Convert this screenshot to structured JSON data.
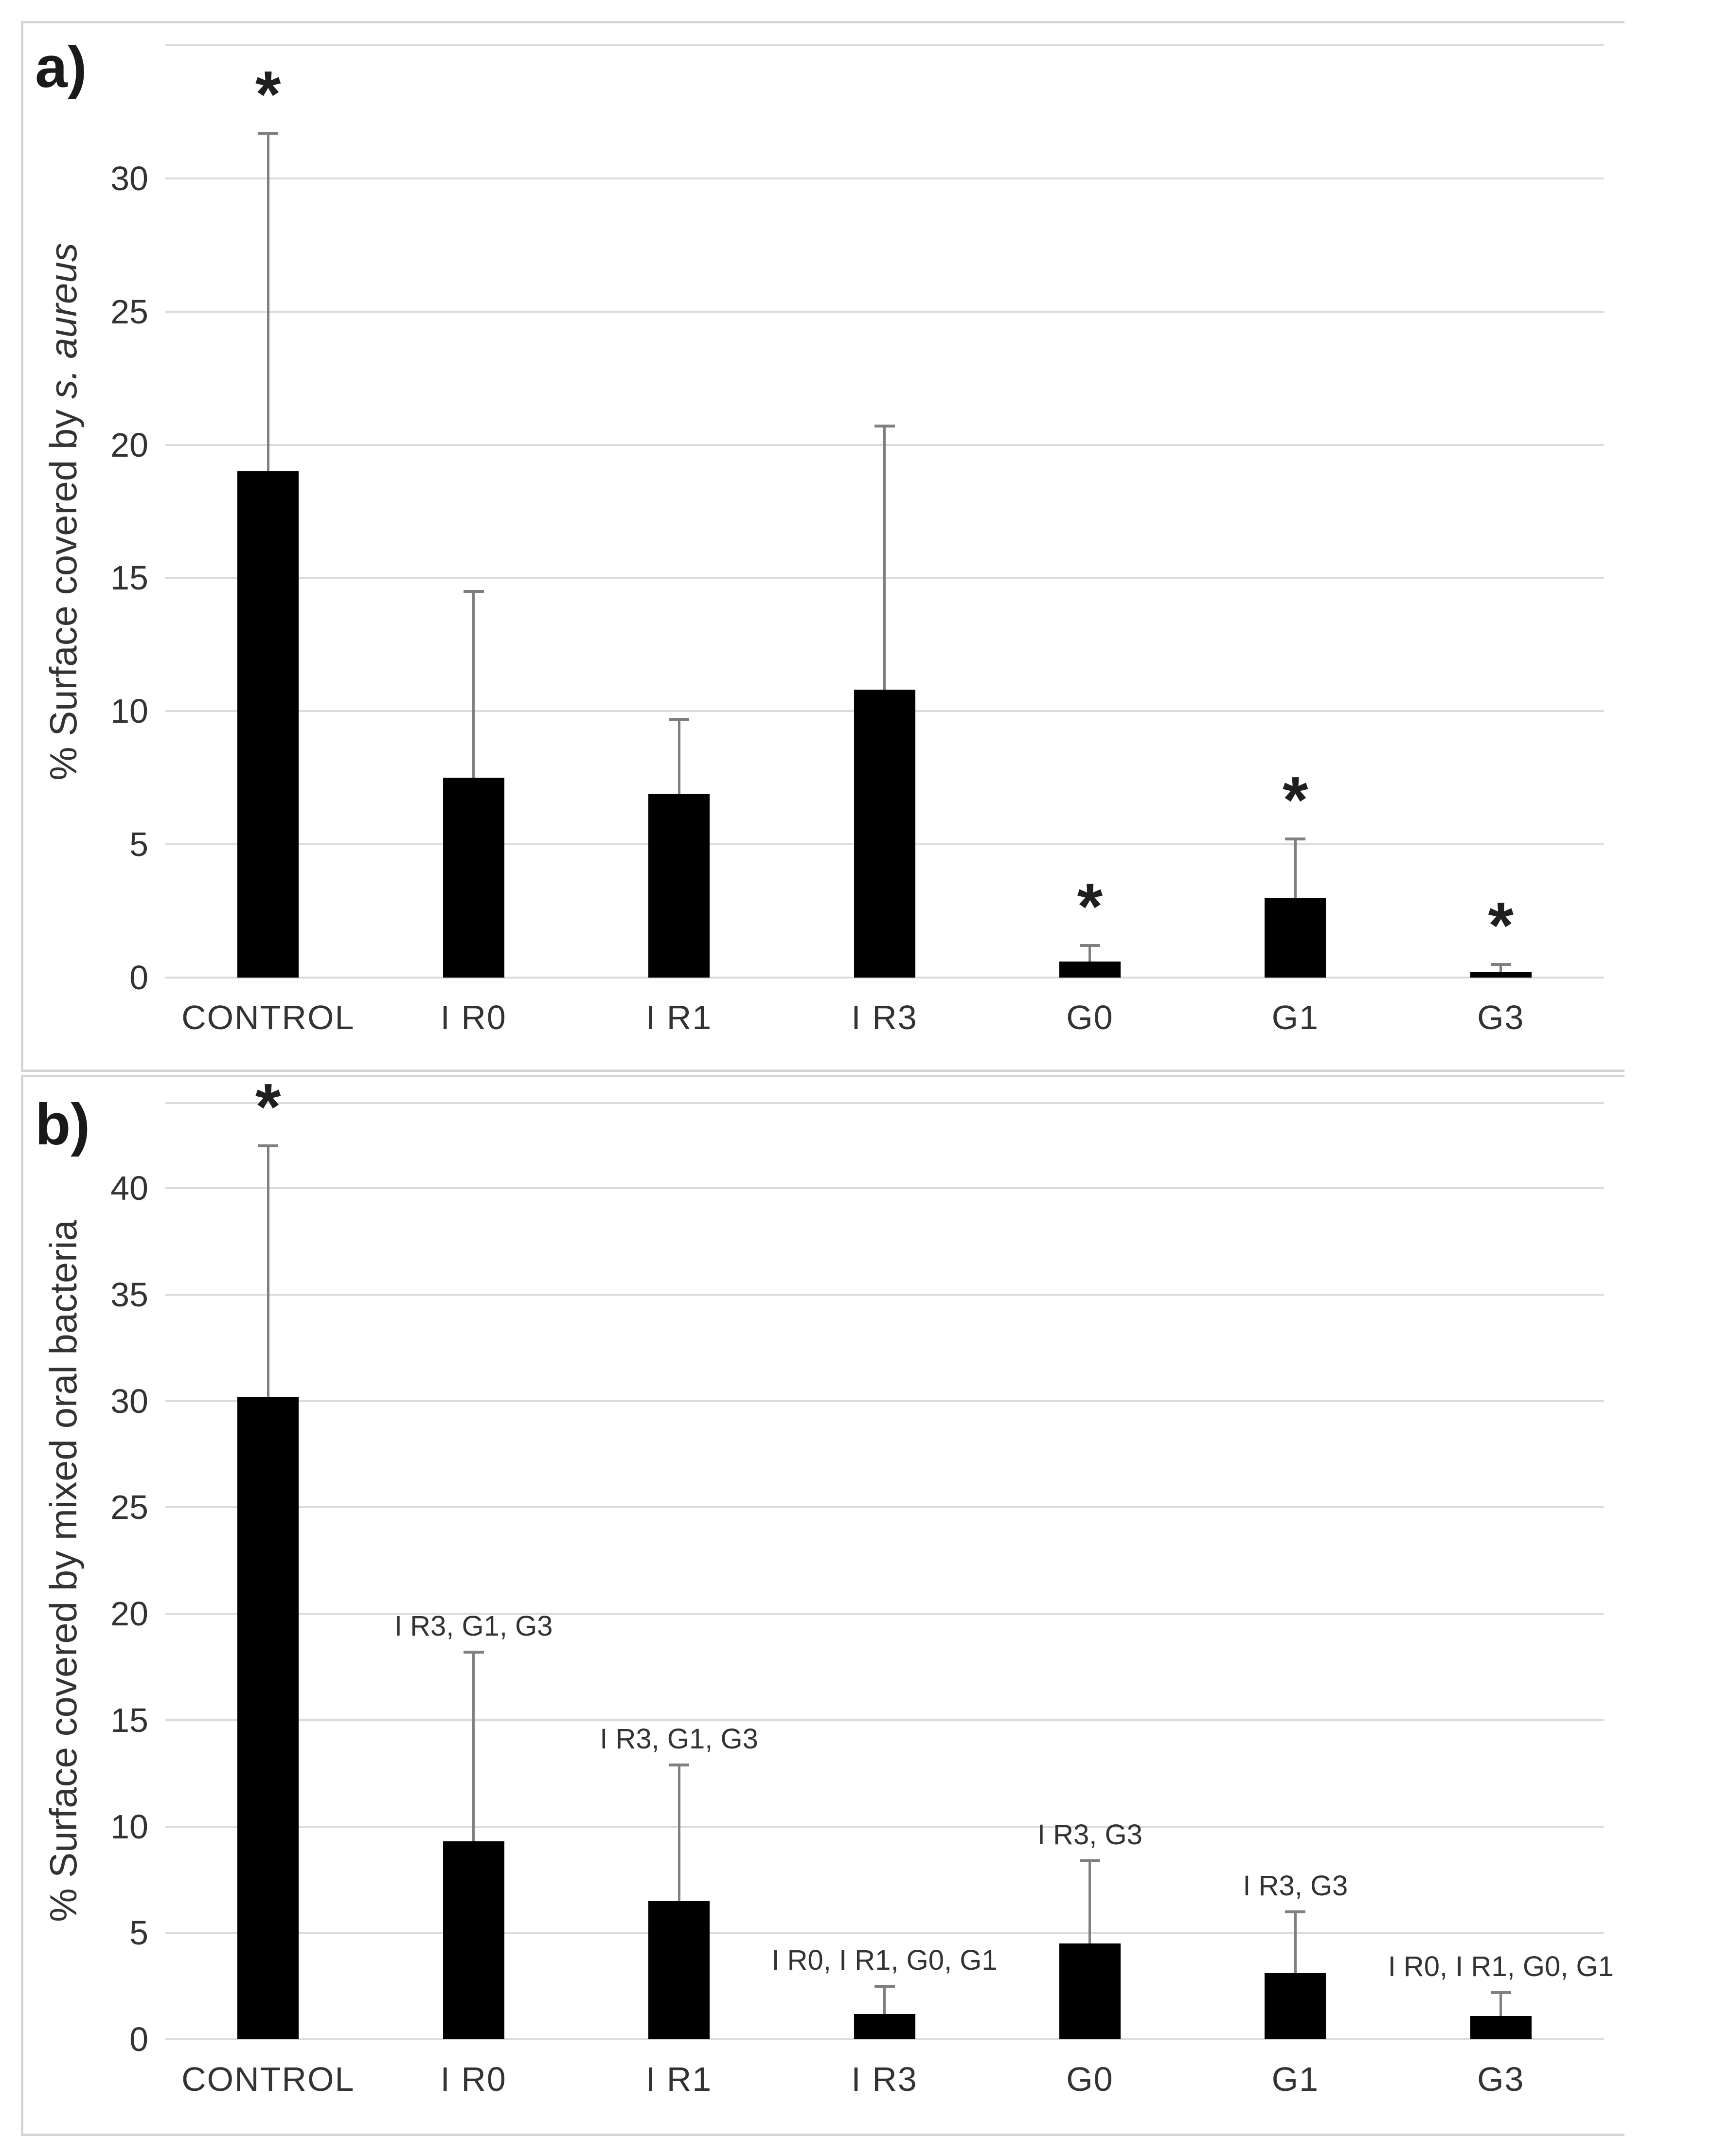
{
  "chart_data": [
    {
      "type": "bar",
      "panel_label": "a)",
      "ylabel_prefix": "% Surface covered by ",
      "ylabel_italic": "s. aureus",
      "categories": [
        "CONTROL",
        "I R0",
        "I R1",
        "I R3",
        "G0",
        "G1",
        "G3"
      ],
      "values": [
        19.0,
        7.5,
        6.9,
        10.8,
        0.6,
        3.0,
        0.2
      ],
      "error_plus": [
        12.7,
        7.0,
        2.8,
        9.9,
        0.6,
        2.2,
        0.3
      ],
      "significance": [
        "*",
        "",
        "",
        "",
        "*",
        "*",
        "*"
      ],
      "annotations": [
        "",
        "",
        "",
        "",
        "",
        "",
        ""
      ],
      "yticks": [
        0,
        5,
        10,
        15,
        20,
        25,
        30
      ],
      "ylim": [
        0,
        35
      ],
      "grid": true,
      "legend": "none"
    },
    {
      "type": "bar",
      "panel_label": "b)",
      "ylabel_prefix": "% Surface covered by mixed oral bacteria",
      "ylabel_italic": "",
      "categories": [
        "CONTROL",
        "I R0",
        "I R1",
        "I R3",
        "G0",
        "G1",
        "G3"
      ],
      "values": [
        30.2,
        9.3,
        6.5,
        1.2,
        4.5,
        3.1,
        1.1
      ],
      "error_plus": [
        11.8,
        8.9,
        6.4,
        1.3,
        3.9,
        2.9,
        1.1
      ],
      "significance": [
        "*",
        "",
        "",
        "",
        "",
        "",
        ""
      ],
      "annotations": [
        "",
        "I R3, G1, G3",
        "I R3, G1, G3",
        "I R0, I R1, G0, G1",
        "I R3, G3",
        "I R3, G3",
        "I R0, I R1, G0, G1"
      ],
      "yticks": [
        0,
        5,
        10,
        15,
        20,
        25,
        30,
        35,
        40
      ],
      "ylim": [
        0,
        44
      ],
      "grid": true,
      "legend": "none"
    }
  ],
  "colors": {
    "bar": "#000000",
    "gridline": "#dbdbdb",
    "frame": "#d4d4d4",
    "error_bar": "#7f7f7f",
    "text": "#333333"
  }
}
